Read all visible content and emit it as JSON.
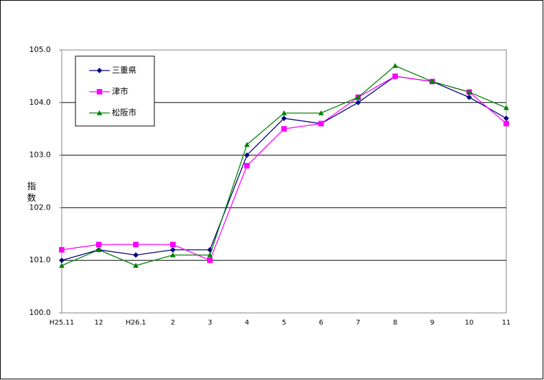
{
  "chart_data": {
    "type": "line",
    "y_label": "指数",
    "categories": [
      "H25.11",
      "12",
      "H26.1",
      "2",
      "3",
      "4",
      "5",
      "6",
      "7",
      "8",
      "9",
      "10",
      "11"
    ],
    "series": [
      {
        "name": "三重県",
        "color": "#000080",
        "marker": "diamond",
        "values": [
          101.0,
          101.2,
          101.1,
          101.2,
          101.2,
          103.0,
          103.7,
          103.6,
          104.0,
          104.5,
          104.4,
          104.1,
          103.7
        ]
      },
      {
        "name": "津市",
        "color": "#ff00ff",
        "marker": "square",
        "values": [
          101.2,
          101.3,
          101.3,
          101.3,
          101.0,
          102.8,
          103.5,
          103.6,
          104.1,
          104.5,
          104.4,
          104.2,
          103.6
        ]
      },
      {
        "name": "松阪市",
        "color": "#008000",
        "marker": "triangle",
        "values": [
          100.9,
          101.2,
          100.9,
          101.1,
          101.1,
          103.2,
          103.8,
          103.8,
          104.1,
          104.7,
          104.4,
          104.2,
          103.9
        ]
      }
    ],
    "ylim": [
      100,
      105
    ],
    "yticks": [
      {
        "value": 100,
        "label": "100.0"
      },
      {
        "value": 101,
        "label": "101.0"
      },
      {
        "value": 102,
        "label": "102.0"
      },
      {
        "value": 103,
        "label": "103.0"
      },
      {
        "value": 104,
        "label": "104.0"
      },
      {
        "value": 105,
        "label": "105.0"
      }
    ],
    "grid": true
  }
}
